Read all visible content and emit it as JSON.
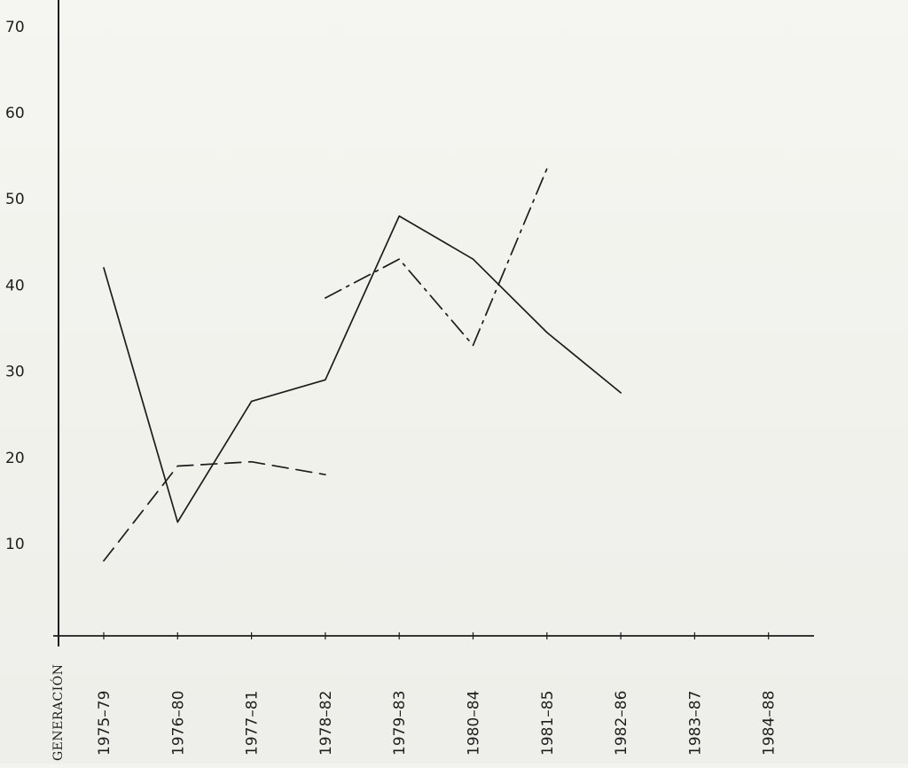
{
  "chart_data": {
    "type": "line",
    "title": "",
    "xlabel": "GENERACIÓN",
    "ylabel": "",
    "ylim": [
      0,
      70
    ],
    "y_ticks": [
      10,
      20,
      30,
      40,
      50,
      60,
      70
    ],
    "categories": [
      "1975-79",
      "1976-80",
      "1977-81",
      "1978-82",
      "1979-83",
      "1980-84",
      "1981-85",
      "1982-86",
      "1983-87",
      "1984-88"
    ],
    "category_labels": [
      "1975–79",
      "1976–80",
      "1977–81",
      "1978–82",
      "1979–83",
      "1980–84",
      "1981–85",
      "1982–86",
      "1983–87",
      "1984–88"
    ],
    "grid": false,
    "legend": "none",
    "series": [
      {
        "style": "solid",
        "values": [
          [
            0,
            42
          ],
          [
            1,
            12.5
          ],
          [
            2,
            26.5
          ],
          [
            3,
            29
          ],
          [
            4,
            48
          ],
          [
            5,
            43
          ],
          [
            6,
            34.5
          ],
          [
            7,
            27.5
          ]
        ]
      },
      {
        "style": "dashed",
        "values": [
          [
            0,
            8
          ],
          [
            1,
            19
          ],
          [
            2,
            19.5
          ],
          [
            3,
            18
          ]
        ]
      },
      {
        "style": "dash-dot",
        "values": [
          [
            3,
            38.5
          ],
          [
            4,
            43
          ],
          [
            5,
            33
          ],
          [
            6,
            53.5
          ]
        ]
      }
    ],
    "colors": {
      "line": "#1c1c1c",
      "axis": "#1c1c1c",
      "paper": "#f3f3ef"
    }
  }
}
